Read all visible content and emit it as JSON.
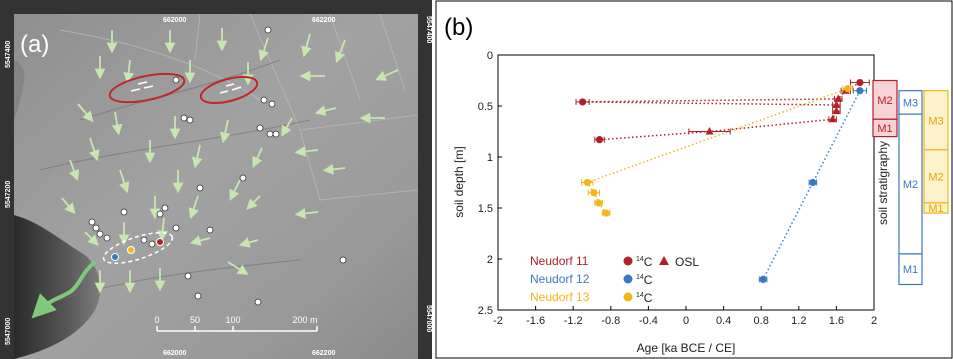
{
  "panel_a": {
    "label": "(a)",
    "coord_top_left": "662000",
    "coord_top_right": "662200",
    "coord_bottom_left": "662000",
    "coord_bottom_right": "662200",
    "coord_left_top": "5547400",
    "coord_left_mid": "5547200",
    "coord_left_bottom": "5547000",
    "coord_right_top": "5547400",
    "coord_right_bottom": "5547000",
    "scale_labels": [
      "0",
      "50",
      "100",
      "200 m"
    ],
    "colors": {
      "arrow": "#c8e6b0",
      "ellipse_red": "#c0282a",
      "ellipse_white": "#ffffff",
      "point": "#ffffff",
      "channel": "#7fc97a"
    }
  },
  "panel_b": {
    "label": "(b)",
    "colors": {
      "neudorf11": "#b2202a",
      "neudorf12": "#3b78c2",
      "neudorf13": "#f2b619"
    },
    "legend": {
      "n11": "Neudorf 11",
      "n12": "Neudorf 12",
      "n13": "Neudorf 13",
      "c14_sup": "14",
      "c14_base": "C",
      "osl": "OSL"
    },
    "strat_label": "soil stratigraphy",
    "strat": {
      "n11": [
        {
          "label": "M2",
          "top": 0.25,
          "bottom": 0.63
        },
        {
          "label": "M1",
          "top": 0.63,
          "bottom": 0.8
        }
      ],
      "n12": [
        {
          "label": "M3",
          "top": 0.35,
          "bottom": 0.58
        },
        {
          "label": "M2",
          "top": 0.58,
          "bottom": 1.95
        },
        {
          "label": "M1",
          "top": 1.95,
          "bottom": 2.25
        }
      ],
      "n13": [
        {
          "label": "M3",
          "top": 0.35,
          "bottom": 0.93
        },
        {
          "label": "M2",
          "top": 0.93,
          "bottom": 1.45
        },
        {
          "label": "M1",
          "top": 1.45,
          "bottom": 1.55
        }
      ]
    }
  },
  "chart_data": {
    "type": "scatter",
    "title": "",
    "xlabel": "Age [ka BCE / CE]",
    "ylabel": "soil depth [m]",
    "xlim": [
      -2,
      2
    ],
    "ylim": [
      2.5,
      0
    ],
    "xticks": [
      "-2",
      "-1.6",
      "-1.2",
      "-0.8",
      "-0.4",
      "0",
      "0.4",
      "0.8",
      "1.2",
      "1.6",
      "2"
    ],
    "yticks": [
      "0",
      "0.5",
      "1",
      "1.5",
      "2",
      "2.5"
    ],
    "series": [
      {
        "name": "Neudorf 11",
        "marker": "circle",
        "points": [
          {
            "x": 1.85,
            "y": 0.27,
            "xerr": 0.1
          },
          {
            "x": -1.1,
            "y": 0.46,
            "xerr": 0.07
          },
          {
            "x": -0.92,
            "y": 0.83,
            "xerr": 0.05
          }
        ]
      },
      {
        "name": "Neudorf 11",
        "marker": "triangle",
        "points": [
          {
            "x": 1.7,
            "y": 0.35,
            "xerr": 0.05
          },
          {
            "x": 1.62,
            "y": 0.43,
            "xerr": 0.04
          },
          {
            "x": 1.6,
            "y": 0.49,
            "xerr": 0.04
          },
          {
            "x": 1.6,
            "y": 0.55,
            "xerr": 0.04
          },
          {
            "x": 1.56,
            "y": 0.63,
            "xerr": 0.04
          },
          {
            "x": 0.25,
            "y": 0.75,
            "xerr": 0.22
          }
        ]
      },
      {
        "name": "Neudorf 12",
        "marker": "circle",
        "points": [
          {
            "x": 1.85,
            "y": 0.35,
            "xerr": 0.07
          },
          {
            "x": 1.35,
            "y": 1.25,
            "xerr": 0.04
          },
          {
            "x": 0.82,
            "y": 2.2,
            "xerr": 0.04
          }
        ]
      },
      {
        "name": "Neudorf 13",
        "marker": "circle",
        "points": [
          {
            "x": 1.72,
            "y": 0.33,
            "xerr": 0.05
          },
          {
            "x": -1.05,
            "y": 1.25,
            "xerr": 0.06
          },
          {
            "x": -0.98,
            "y": 1.35,
            "xerr": 0.06
          },
          {
            "x": -0.93,
            "y": 1.45,
            "xerr": 0.04
          },
          {
            "x": -0.85,
            "y": 1.55,
            "xerr": 0.04
          }
        ]
      }
    ]
  }
}
